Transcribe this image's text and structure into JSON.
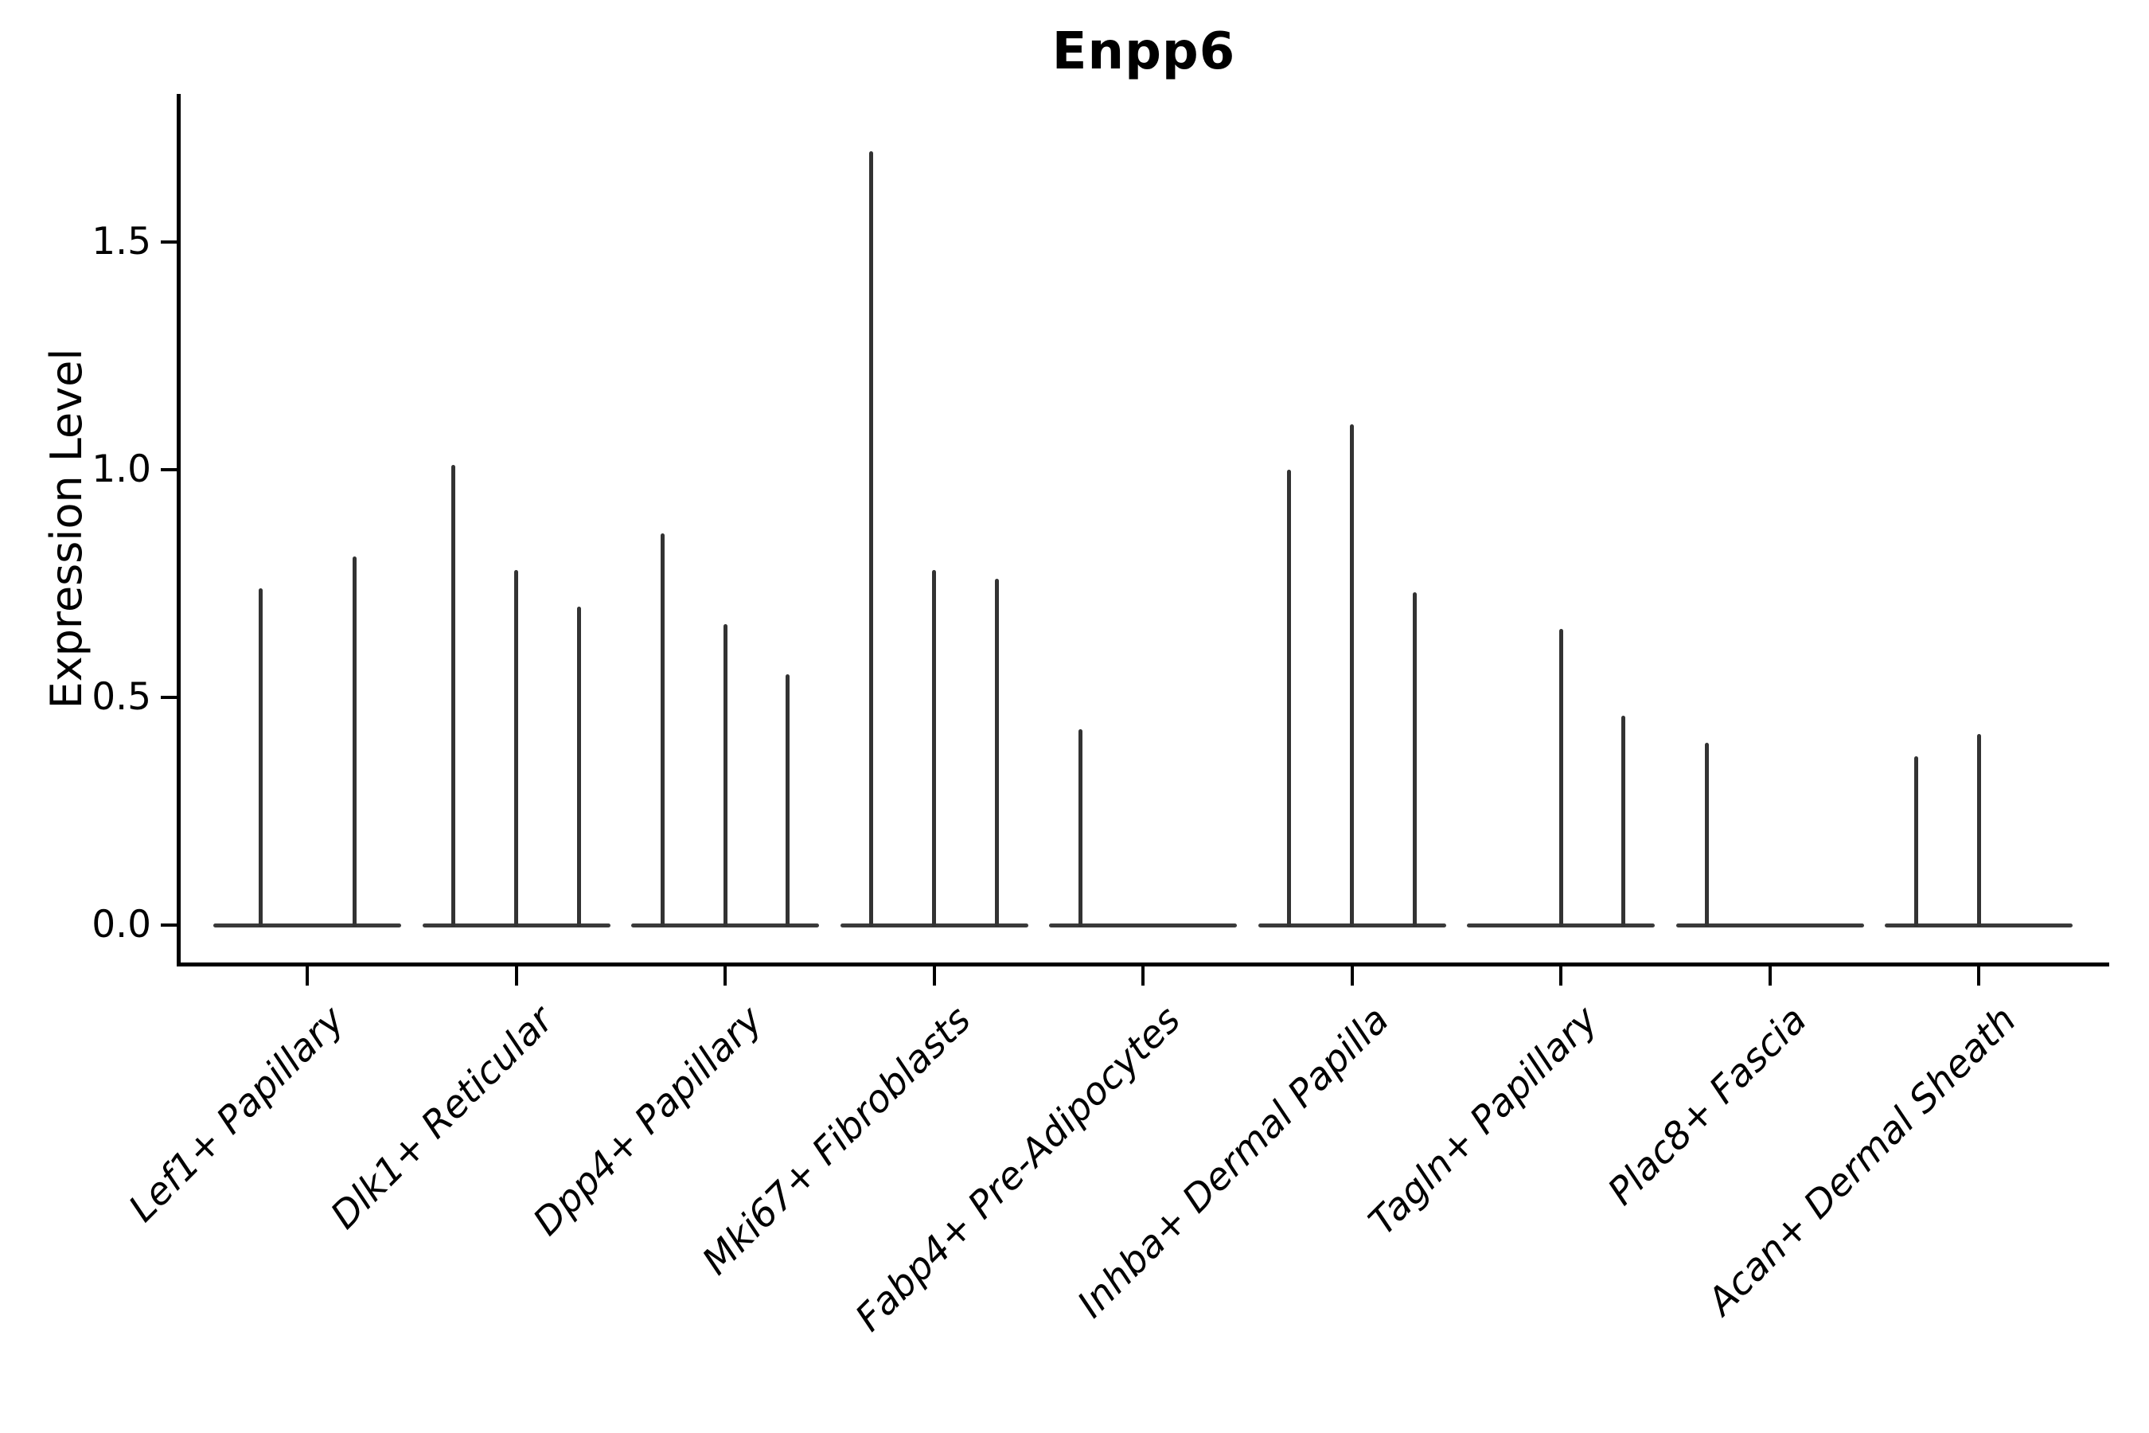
{
  "figure": {
    "background": "#ffffff",
    "line_color": "#333333",
    "axis_color": "#000000"
  },
  "chart_data": {
    "type": "violin",
    "title": "Enpp6",
    "xlabel": "",
    "ylabel": "Expression Level",
    "ylim": [
      -0.09,
      1.79
    ],
    "yticks": [
      0.0,
      0.5,
      1.0,
      1.5
    ],
    "yticklabels": [
      "0.0",
      "0.5",
      "1.0",
      "1.5"
    ],
    "grid": false,
    "legend": "none",
    "note": "Seurat-style violin plot; each cell-type group contains dodged sub-violins that collapse to a flat base at 0 with a thin density spike whose top is the listed peak expression value; peak 0 means a flat violin with no spike.",
    "categories": [
      "Lef1+ Papillary",
      "Dlk1+ Reticular",
      "Dpp4+ Papillary",
      "Mki67+ Fibroblasts",
      "Fabp4+ Pre-Adipocytes",
      "Inhba+ Dermal Papilla",
      "Tagln+ Papillary",
      "Plac8+ Fascia",
      "Acan+ Dermal Sheath"
    ],
    "groups": [
      {
        "category": "Lef1+ Papillary",
        "violin_peaks": [
          0.74,
          0.81
        ]
      },
      {
        "category": "Dlk1+ Reticular",
        "violin_peaks": [
          1.01,
          0.78,
          0.7
        ]
      },
      {
        "category": "Dpp4+ Papillary",
        "violin_peaks": [
          0.86,
          0.66,
          0.55
        ]
      },
      {
        "category": "Mki67+ Fibroblasts",
        "violin_peaks": [
          1.7,
          0.78,
          0.76
        ]
      },
      {
        "category": "Fabp4+ Pre-Adipocytes",
        "violin_peaks": [
          0.43,
          0.0,
          0.0
        ]
      },
      {
        "category": "Inhba+ Dermal Papilla",
        "violin_peaks": [
          1.0,
          1.1,
          0.73
        ]
      },
      {
        "category": "Tagln+ Papillary",
        "violin_peaks": [
          0.0,
          0.65,
          0.46
        ]
      },
      {
        "category": "Plac8+ Fascia",
        "violin_peaks": [
          0.4,
          0.0,
          0.0
        ]
      },
      {
        "category": "Acan+ Dermal Sheath",
        "violin_peaks": [
          0.37,
          0.42,
          0.0
        ]
      }
    ]
  }
}
